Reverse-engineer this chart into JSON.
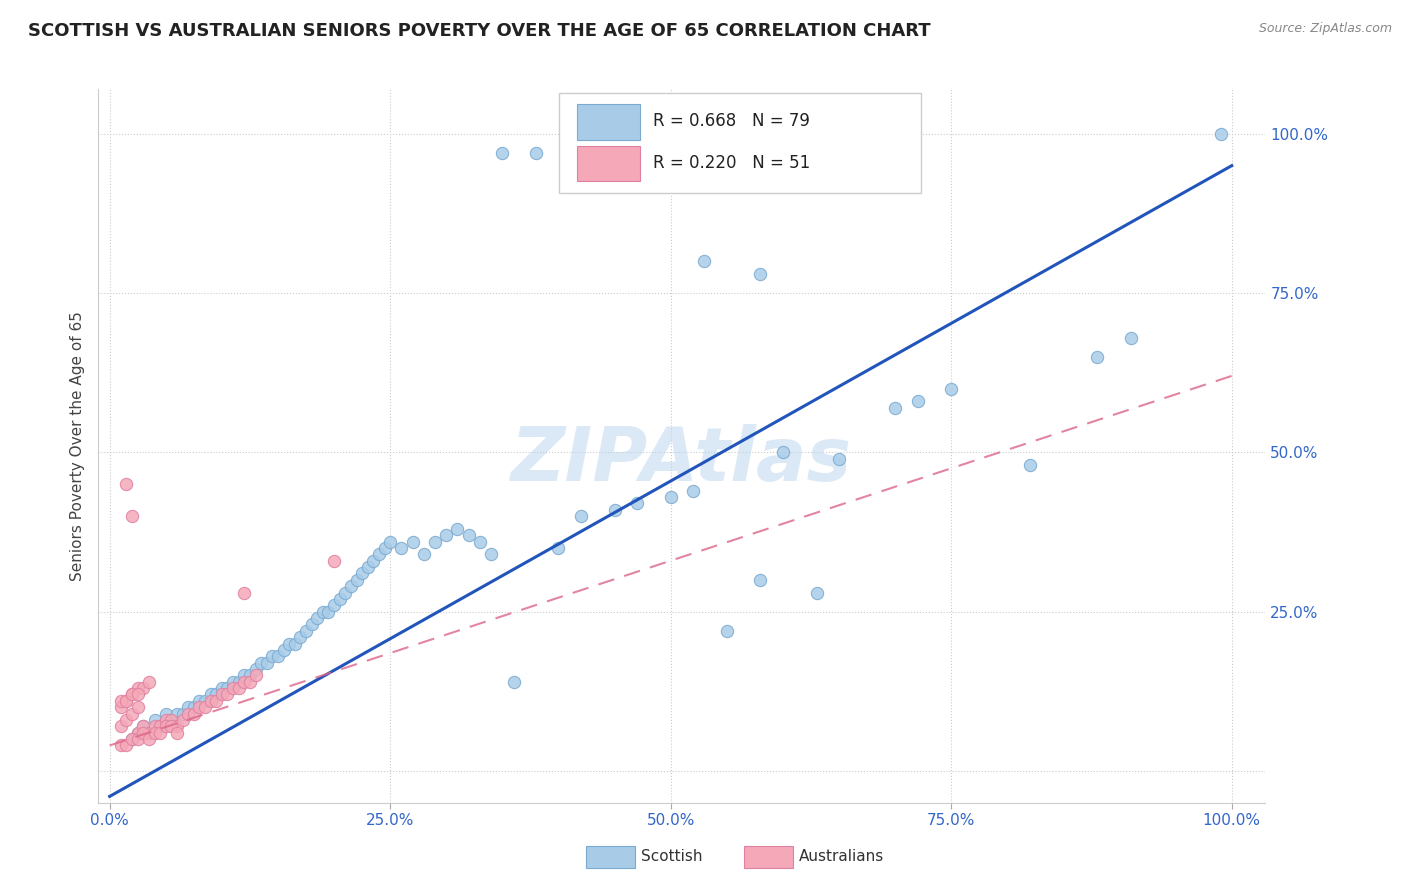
{
  "title": "SCOTTISH VS AUSTRALIAN SENIORS POVERTY OVER THE AGE OF 65 CORRELATION CHART",
  "source": "Source: ZipAtlas.com",
  "ylabel": "Seniors Poverty Over the Age of 65",
  "xlim": [
    -0.01,
    1.03
  ],
  "ylim": [
    -0.05,
    1.07
  ],
  "xticks": [
    0.0,
    0.25,
    0.5,
    0.75,
    1.0
  ],
  "yticks": [
    0.0,
    0.25,
    0.5,
    0.75,
    1.0
  ],
  "xtick_labels": [
    "0.0%",
    "25.0%",
    "50.0%",
    "75.0%",
    "100.0%"
  ],
  "ytick_labels_right": [
    "25.0%",
    "50.0%",
    "75.0%",
    "100.0%"
  ],
  "grid_color": "#cccccc",
  "watermark": "ZIPAtlas",
  "watermark_color": "#b8d4ee",
  "scottish_face": "#a8cce8",
  "scottish_edge": "#7aaad0",
  "australian_face": "#f4a8b8",
  "australian_edge": "#e080a0",
  "blue_line_color": "#2255bb",
  "pink_line_color": "#dd6688",
  "legend_R1": "R = 0.668",
  "legend_N1": "N = 79",
  "legend_R2": "R = 0.220",
  "legend_N2": "N = 51",
  "tick_color_blue": "#3366cc",
  "title_fontsize": 13,
  "tick_fontsize": 11,
  "ylabel_fontsize": 11,
  "marker_size": 14,
  "scottish_x": [
    0.35,
    0.38,
    0.025,
    0.03,
    0.035,
    0.04,
    0.045,
    0.05,
    0.055,
    0.06,
    0.065,
    0.07,
    0.075,
    0.08,
    0.085,
    0.09,
    0.095,
    0.1,
    0.105,
    0.11,
    0.115,
    0.12,
    0.125,
    0.13,
    0.135,
    0.14,
    0.145,
    0.15,
    0.155,
    0.16,
    0.165,
    0.17,
    0.175,
    0.18,
    0.185,
    0.19,
    0.195,
    0.2,
    0.205,
    0.21,
    0.215,
    0.22,
    0.225,
    0.23,
    0.235,
    0.24,
    0.245,
    0.25,
    0.26,
    0.27,
    0.28,
    0.29,
    0.3,
    0.31,
    0.32,
    0.33,
    0.34,
    0.36,
    0.4,
    0.42,
    0.45,
    0.47,
    0.5,
    0.52,
    0.55,
    0.58,
    0.6,
    0.65,
    0.7,
    0.72,
    0.75,
    0.82,
    0.88,
    0.91,
    0.53,
    0.58,
    0.99,
    0.02,
    0.63
  ],
  "scottish_y": [
    0.97,
    0.97,
    0.06,
    0.07,
    0.06,
    0.08,
    0.07,
    0.09,
    0.08,
    0.09,
    0.09,
    0.1,
    0.1,
    0.11,
    0.11,
    0.12,
    0.12,
    0.13,
    0.13,
    0.14,
    0.14,
    0.15,
    0.15,
    0.16,
    0.17,
    0.17,
    0.18,
    0.18,
    0.19,
    0.2,
    0.2,
    0.21,
    0.22,
    0.23,
    0.24,
    0.25,
    0.25,
    0.26,
    0.27,
    0.28,
    0.29,
    0.3,
    0.31,
    0.32,
    0.33,
    0.34,
    0.35,
    0.36,
    0.35,
    0.36,
    0.34,
    0.36,
    0.37,
    0.38,
    0.37,
    0.36,
    0.34,
    0.14,
    0.35,
    0.4,
    0.41,
    0.42,
    0.43,
    0.44,
    0.22,
    0.3,
    0.5,
    0.49,
    0.57,
    0.58,
    0.6,
    0.48,
    0.65,
    0.68,
    0.8,
    0.78,
    1.0,
    0.05,
    0.28
  ],
  "australian_x": [
    0.015,
    0.02,
    0.025,
    0.03,
    0.035,
    0.04,
    0.045,
    0.05,
    0.055,
    0.06,
    0.065,
    0.07,
    0.075,
    0.08,
    0.085,
    0.09,
    0.095,
    0.1,
    0.105,
    0.11,
    0.115,
    0.12,
    0.125,
    0.13,
    0.01,
    0.015,
    0.02,
    0.025,
    0.03,
    0.035,
    0.04,
    0.045,
    0.05,
    0.055,
    0.06,
    0.01,
    0.015,
    0.02,
    0.025,
    0.03,
    0.035,
    0.01,
    0.015,
    0.02,
    0.025,
    0.01,
    0.015,
    0.02,
    0.025,
    0.2,
    0.12
  ],
  "australian_y": [
    0.45,
    0.4,
    0.06,
    0.07,
    0.06,
    0.07,
    0.07,
    0.08,
    0.08,
    0.07,
    0.08,
    0.09,
    0.09,
    0.1,
    0.1,
    0.11,
    0.11,
    0.12,
    0.12,
    0.13,
    0.13,
    0.14,
    0.14,
    0.15,
    0.04,
    0.04,
    0.05,
    0.05,
    0.06,
    0.05,
    0.06,
    0.06,
    0.07,
    0.07,
    0.06,
    0.1,
    0.11,
    0.12,
    0.13,
    0.13,
    0.14,
    0.07,
    0.08,
    0.09,
    0.1,
    0.11,
    0.11,
    0.12,
    0.12,
    0.33,
    0.28
  ],
  "blue_line_x": [
    0.0,
    1.0
  ],
  "blue_line_y": [
    -0.04,
    0.95
  ],
  "pink_line_x": [
    0.0,
    1.0
  ],
  "pink_line_y": [
    0.04,
    0.62
  ]
}
